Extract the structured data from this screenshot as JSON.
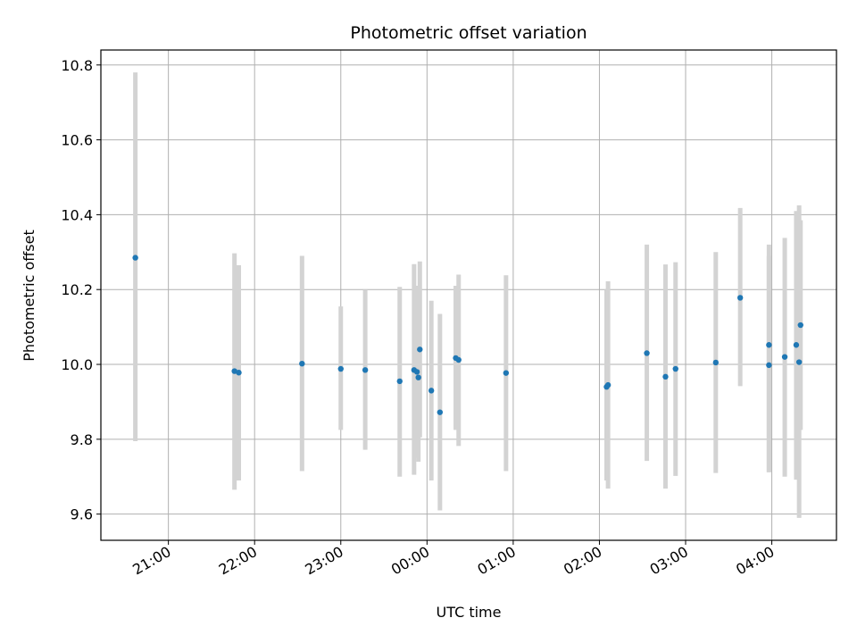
{
  "chart_data": {
    "type": "scatter",
    "title": "Photometric offset variation",
    "xlabel": "UTC time",
    "ylabel": "Photometric offset",
    "x_axis": {
      "kind": "time",
      "range": [
        "20:13",
        "04:45"
      ],
      "ticks": [
        "21:00",
        "22:00",
        "23:00",
        "00:00",
        "01:00",
        "02:00",
        "03:00",
        "04:00"
      ]
    },
    "y_axis": {
      "range": [
        9.53,
        10.84
      ],
      "ticks": [
        9.6,
        9.8,
        10.0,
        10.2,
        10.4,
        10.6,
        10.8
      ]
    },
    "grid": true,
    "colors": {
      "points": "#1f77b4",
      "error_bars": "#d3d3d3",
      "grid": "#b0b0b0"
    },
    "points": [
      {
        "t": "20:37",
        "y": 10.285,
        "lo": 9.795,
        "hi": 10.78
      },
      {
        "t": "21:46",
        "y": 9.982,
        "lo": 9.665,
        "hi": 10.297
      },
      {
        "t": "21:49",
        "y": 9.978,
        "lo": 9.69,
        "hi": 10.265
      },
      {
        "t": "22:33",
        "y": 10.002,
        "lo": 9.715,
        "hi": 10.29
      },
      {
        "t": "23:00",
        "y": 9.988,
        "lo": 9.825,
        "hi": 10.155
      },
      {
        "t": "23:17",
        "y": 9.985,
        "lo": 9.772,
        "hi": 10.2
      },
      {
        "t": "23:41",
        "y": 9.955,
        "lo": 9.7,
        "hi": 10.207
      },
      {
        "t": "23:51",
        "y": 9.985,
        "lo": 9.705,
        "hi": 10.268
      },
      {
        "t": "23:53",
        "y": 9.98,
        "lo": 9.75,
        "hi": 10.21
      },
      {
        "t": "23:55",
        "y": 10.04,
        "lo": 9.805,
        "hi": 10.275
      },
      {
        "t": "23:54",
        "y": 9.965,
        "lo": 9.74,
        "hi": 10.19
      },
      {
        "t": "00:03",
        "y": 9.93,
        "lo": 9.69,
        "hi": 10.17
      },
      {
        "t": "00:09",
        "y": 9.872,
        "lo": 9.61,
        "hi": 10.135
      },
      {
        "t": "00:20",
        "y": 10.017,
        "lo": 9.825,
        "hi": 10.21
      },
      {
        "t": "00:22",
        "y": 10.012,
        "lo": 9.782,
        "hi": 10.24
      },
      {
        "t": "00:55",
        "y": 9.977,
        "lo": 9.715,
        "hi": 10.238
      },
      {
        "t": "02:05",
        "y": 9.94,
        "lo": 9.69,
        "hi": 10.2
      },
      {
        "t": "02:06",
        "y": 9.945,
        "lo": 9.668,
        "hi": 10.222
      },
      {
        "t": "02:33",
        "y": 10.03,
        "lo": 9.742,
        "hi": 10.32
      },
      {
        "t": "02:46",
        "y": 9.967,
        "lo": 9.668,
        "hi": 10.267
      },
      {
        "t": "02:53",
        "y": 9.988,
        "lo": 9.702,
        "hi": 10.273
      },
      {
        "t": "03:21",
        "y": 10.005,
        "lo": 9.71,
        "hi": 10.3
      },
      {
        "t": "03:38",
        "y": 10.178,
        "lo": 9.942,
        "hi": 10.418
      },
      {
        "t": "03:58",
        "y": 10.052,
        "lo": 9.712,
        "hi": 10.32
      },
      {
        "t": "03:58",
        "y": 9.998,
        "lo": 9.712,
        "hi": 10.29
      },
      {
        "t": "04:09",
        "y": 10.02,
        "lo": 9.7,
        "hi": 10.338
      },
      {
        "t": "04:17",
        "y": 10.052,
        "lo": 9.692,
        "hi": 10.41
      },
      {
        "t": "04:19",
        "y": 10.006,
        "lo": 9.59,
        "hi": 10.425
      },
      {
        "t": "04:20",
        "y": 10.105,
        "lo": 9.825,
        "hi": 10.385
      }
    ]
  }
}
